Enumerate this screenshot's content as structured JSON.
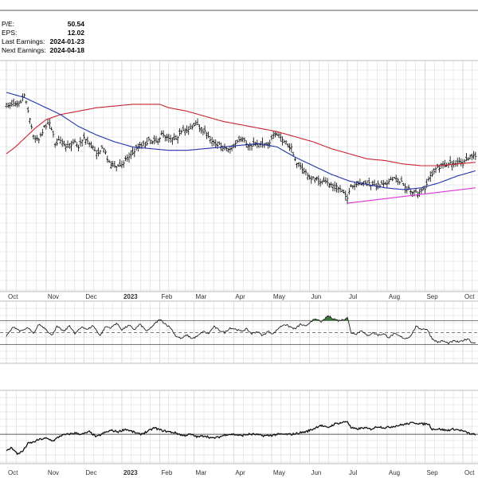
{
  "stats": [
    {
      "label": "P/E:",
      "value": "50.54"
    },
    {
      "label": "EPS:",
      "value": "12.02"
    },
    {
      "label": "Last Earnings:",
      "value": "2024-01-23"
    },
    {
      "label": "Next Earnings:",
      "value": "2024-04-18"
    }
  ],
  "colors": {
    "price_bars": "#000000",
    "ma_short": "#2233aa",
    "ma_long": "#cc2233",
    "trendline": "#dd33dd",
    "indicator_fill": "#3a7a3a",
    "grid": "#d6d6d6",
    "axis_text": "#333333"
  },
  "chart_data": [
    {
      "type": "ohlc",
      "x_axis": {
        "labels": [
          "Oct",
          "Nov",
          "Dec",
          "2023",
          "Feb",
          "Mar",
          "Apr",
          "May",
          "Jun",
          "Jul",
          "Aug",
          "Sep",
          "Oct"
        ],
        "bold_labels": [
          "2023"
        ],
        "day_positions": [
          0,
          22,
          43,
          64,
          85,
          104,
          126,
          147,
          168,
          189,
          211,
          232,
          253
        ]
      },
      "y_range": [
        0,
        100
      ],
      "grid": true,
      "price_anchors": [
        [
          0,
          22
        ],
        [
          4,
          20
        ],
        [
          8,
          19
        ],
        [
          10,
          15
        ],
        [
          12,
          24
        ],
        [
          15,
          40
        ],
        [
          18,
          41
        ],
        [
          22,
          33
        ],
        [
          24,
          31
        ],
        [
          27,
          44
        ],
        [
          30,
          42
        ],
        [
          33,
          47
        ],
        [
          38,
          42
        ],
        [
          40,
          46
        ],
        [
          43,
          40
        ],
        [
          46,
          44
        ],
        [
          50,
          49
        ],
        [
          54,
          47
        ],
        [
          57,
          55
        ],
        [
          60,
          58
        ],
        [
          63,
          57
        ],
        [
          67,
          52
        ],
        [
          70,
          50
        ],
        [
          73,
          45
        ],
        [
          77,
          44
        ],
        [
          80,
          42
        ],
        [
          84,
          42
        ],
        [
          86,
          39
        ],
        [
          89,
          40
        ],
        [
          93,
          41
        ],
        [
          97,
          38
        ],
        [
          101,
          35
        ],
        [
          105,
          33
        ],
        [
          108,
          35
        ],
        [
          112,
          40
        ],
        [
          115,
          43
        ],
        [
          118,
          45
        ],
        [
          122,
          47
        ],
        [
          125,
          47
        ],
        [
          128,
          43
        ],
        [
          131,
          42
        ],
        [
          134,
          45
        ],
        [
          138,
          44
        ],
        [
          142,
          44
        ],
        [
          146,
          43
        ],
        [
          148,
          40
        ],
        [
          151,
          39
        ],
        [
          154,
          43
        ],
        [
          158,
          47
        ],
        [
          161,
          55
        ],
        [
          164,
          59
        ],
        [
          168,
          64
        ],
        [
          172,
          65
        ],
        [
          176,
          67
        ],
        [
          180,
          68
        ],
        [
          184,
          70
        ],
        [
          187,
          72
        ],
        [
          189,
          76
        ],
        [
          191,
          70
        ],
        [
          194,
          69
        ],
        [
          197,
          67
        ],
        [
          201,
          68
        ],
        [
          205,
          69
        ],
        [
          209,
          67
        ],
        [
          213,
          66
        ],
        [
          216,
          64
        ],
        [
          220,
          68
        ],
        [
          224,
          72
        ],
        [
          228,
          74
        ],
        [
          232,
          70
        ],
        [
          235,
          63
        ],
        [
          238,
          59
        ],
        [
          241,
          57
        ],
        [
          244,
          56
        ],
        [
          247,
          56
        ],
        [
          250,
          55
        ],
        [
          253,
          56
        ],
        [
          256,
          53
        ],
        [
          258,
          51
        ],
        [
          260,
          52
        ]
      ],
      "ma_short_anchors": [
        [
          0,
          14
        ],
        [
          10,
          17
        ],
        [
          20,
          22
        ],
        [
          30,
          27
        ],
        [
          40,
          34
        ],
        [
          50,
          39
        ],
        [
          60,
          43
        ],
        [
          70,
          46
        ],
        [
          80,
          47
        ],
        [
          90,
          48
        ],
        [
          100,
          48
        ],
        [
          110,
          47
        ],
        [
          120,
          46
        ],
        [
          130,
          45
        ],
        [
          140,
          44
        ],
        [
          150,
          46
        ],
        [
          160,
          52
        ],
        [
          170,
          57
        ],
        [
          180,
          62
        ],
        [
          190,
          66
        ],
        [
          200,
          68
        ],
        [
          210,
          70
        ],
        [
          220,
          71
        ],
        [
          230,
          70
        ],
        [
          240,
          67
        ],
        [
          250,
          63
        ],
        [
          260,
          60
        ]
      ],
      "ma_long_anchors": [
        [
          0,
          50
        ],
        [
          5,
          46
        ],
        [
          10,
          41
        ],
        [
          16,
          35
        ],
        [
          22,
          30
        ],
        [
          30,
          27
        ],
        [
          40,
          25
        ],
        [
          50,
          23
        ],
        [
          60,
          22
        ],
        [
          70,
          21
        ],
        [
          80,
          21
        ],
        [
          85,
          21
        ],
        [
          90,
          23
        ],
        [
          100,
          25
        ],
        [
          110,
          28
        ],
        [
          120,
          31
        ],
        [
          130,
          33
        ],
        [
          140,
          35
        ],
        [
          150,
          37
        ],
        [
          160,
          40
        ],
        [
          170,
          43
        ],
        [
          180,
          47
        ],
        [
          190,
          50
        ],
        [
          200,
          53
        ],
        [
          210,
          54
        ],
        [
          220,
          56
        ],
        [
          230,
          57
        ],
        [
          240,
          57
        ],
        [
          250,
          56
        ],
        [
          260,
          55
        ]
      ],
      "trendline": [
        [
          189,
          79
        ],
        [
          260,
          70
        ]
      ]
    },
    {
      "type": "line",
      "y_range": [
        0,
        100
      ],
      "reference_levels": [
        70,
        50,
        30
      ],
      "grid": true,
      "anchors": [
        [
          0,
          44
        ],
        [
          4,
          60
        ],
        [
          8,
          52
        ],
        [
          12,
          58
        ],
        [
          15,
          48
        ],
        [
          18,
          64
        ],
        [
          22,
          56
        ],
        [
          25,
          45
        ],
        [
          28,
          60
        ],
        [
          32,
          52
        ],
        [
          35,
          62
        ],
        [
          38,
          48
        ],
        [
          42,
          60
        ],
        [
          45,
          55
        ],
        [
          48,
          62
        ],
        [
          52,
          45
        ],
        [
          55,
          60
        ],
        [
          58,
          58
        ],
        [
          61,
          66
        ],
        [
          64,
          55
        ],
        [
          68,
          62
        ],
        [
          71,
          55
        ],
        [
          74,
          64
        ],
        [
          78,
          52
        ],
        [
          82,
          64
        ],
        [
          85,
          72
        ],
        [
          88,
          65
        ],
        [
          91,
          58
        ],
        [
          94,
          44
        ],
        [
          97,
          40
        ],
        [
          100,
          46
        ],
        [
          103,
          40
        ],
        [
          106,
          44
        ],
        [
          109,
          52
        ],
        [
          112,
          48
        ],
        [
          115,
          60
        ],
        [
          118,
          54
        ],
        [
          121,
          50
        ],
        [
          124,
          58
        ],
        [
          127,
          56
        ],
        [
          130,
          52
        ],
        [
          133,
          56
        ],
        [
          136,
          48
        ],
        [
          139,
          52
        ],
        [
          142,
          45
        ],
        [
          145,
          52
        ],
        [
          148,
          48
        ],
        [
          151,
          58
        ],
        [
          154,
          64
        ],
        [
          157,
          60
        ],
        [
          160,
          56
        ],
        [
          163,
          64
        ],
        [
          166,
          60
        ],
        [
          169,
          70
        ],
        [
          172,
          72
        ],
        [
          175,
          68
        ],
        [
          178,
          78
        ],
        [
          181,
          74
        ],
        [
          184,
          70
        ],
        [
          187,
          72
        ],
        [
          189,
          76
        ],
        [
          191,
          50
        ],
        [
          194,
          48
        ],
        [
          197,
          54
        ],
        [
          200,
          44
        ],
        [
          203,
          50
        ],
        [
          206,
          46
        ],
        [
          209,
          48
        ],
        [
          212,
          42
        ],
        [
          215,
          48
        ],
        [
          218,
          44
        ],
        [
          221,
          40
        ],
        [
          224,
          44
        ],
        [
          227,
          60
        ],
        [
          230,
          56
        ],
        [
          233,
          56
        ],
        [
          236,
          40
        ],
        [
          239,
          34
        ],
        [
          242,
          36
        ],
        [
          245,
          32
        ],
        [
          248,
          36
        ],
        [
          251,
          34
        ],
        [
          254,
          38
        ],
        [
          256,
          40
        ],
        [
          258,
          33
        ],
        [
          260,
          34
        ]
      ]
    },
    {
      "type": "line",
      "y_range": [
        0,
        100
      ],
      "reference_levels": [
        40
      ],
      "grid": true,
      "anchors": [
        [
          0,
          14
        ],
        [
          3,
          20
        ],
        [
          6,
          10
        ],
        [
          9,
          14
        ],
        [
          12,
          26
        ],
        [
          15,
          28
        ],
        [
          18,
          32
        ],
        [
          22,
          34
        ],
        [
          26,
          30
        ],
        [
          30,
          38
        ],
        [
          34,
          40
        ],
        [
          38,
          42
        ],
        [
          42,
          40
        ],
        [
          46,
          44
        ],
        [
          50,
          36
        ],
        [
          54,
          42
        ],
        [
          58,
          46
        ],
        [
          62,
          44
        ],
        [
          66,
          48
        ],
        [
          70,
          44
        ],
        [
          74,
          40
        ],
        [
          78,
          44
        ],
        [
          82,
          50
        ],
        [
          86,
          46
        ],
        [
          90,
          44
        ],
        [
          94,
          42
        ],
        [
          98,
          38
        ],
        [
          102,
          40
        ],
        [
          106,
          36
        ],
        [
          110,
          38
        ],
        [
          114,
          34
        ],
        [
          118,
          36
        ],
        [
          122,
          40
        ],
        [
          126,
          40
        ],
        [
          130,
          38
        ],
        [
          134,
          40
        ],
        [
          138,
          40
        ],
        [
          142,
          38
        ],
        [
          146,
          38
        ],
        [
          150,
          40
        ],
        [
          154,
          40
        ],
        [
          158,
          40
        ],
        [
          162,
          42
        ],
        [
          166,
          44
        ],
        [
          170,
          48
        ],
        [
          174,
          54
        ],
        [
          178,
          50
        ],
        [
          182,
          56
        ],
        [
          186,
          58
        ],
        [
          189,
          60
        ],
        [
          191,
          50
        ],
        [
          194,
          48
        ],
        [
          198,
          50
        ],
        [
          202,
          48
        ],
        [
          206,
          52
        ],
        [
          210,
          50
        ],
        [
          214,
          52
        ],
        [
          218,
          54
        ],
        [
          222,
          56
        ],
        [
          226,
          58
        ],
        [
          230,
          56
        ],
        [
          234,
          56
        ],
        [
          236,
          48
        ],
        [
          240,
          48
        ],
        [
          244,
          46
        ],
        [
          248,
          48
        ],
        [
          252,
          46
        ],
        [
          256,
          42
        ],
        [
          258,
          40
        ],
        [
          260,
          40
        ]
      ]
    }
  ]
}
